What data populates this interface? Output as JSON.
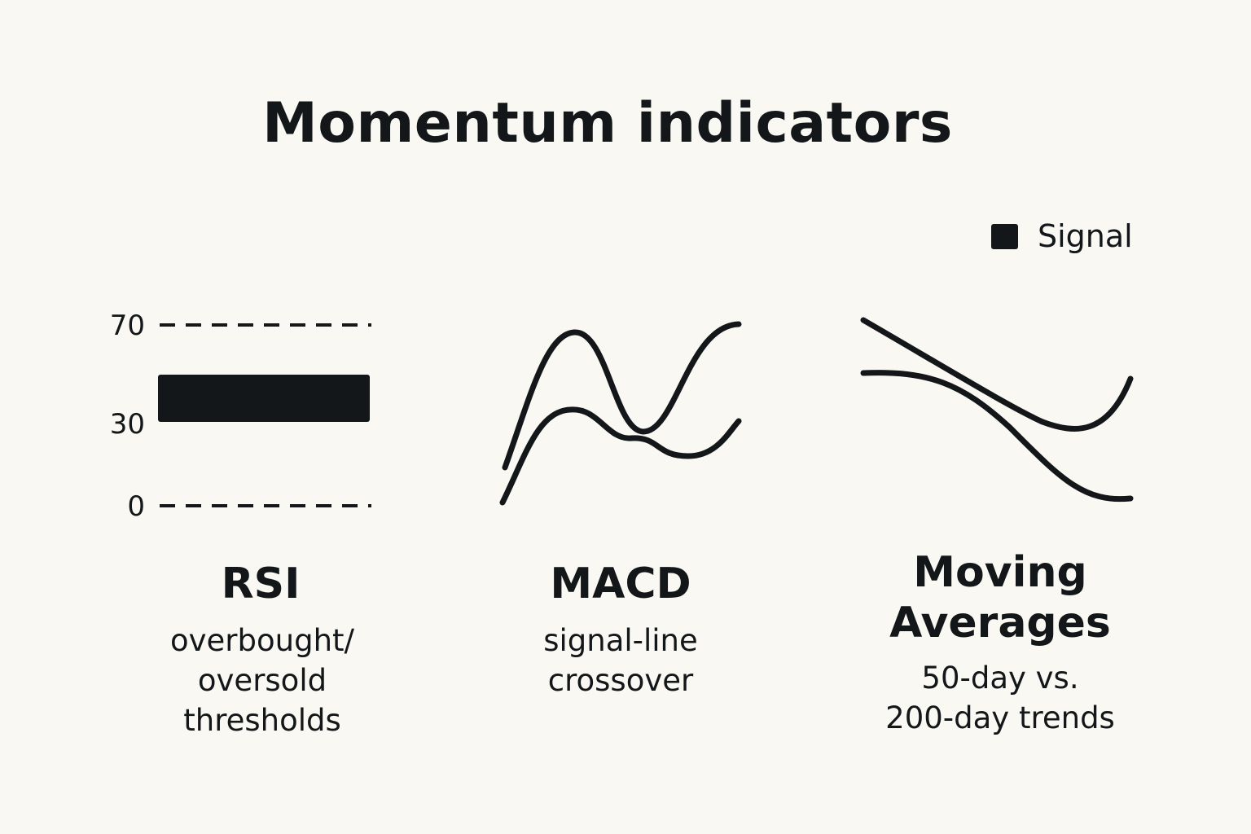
{
  "title": "Momentum indicators",
  "legend": {
    "label": "Signal",
    "color": "#141719"
  },
  "colors": {
    "ink": "#141719",
    "background": "#f9f8f3"
  },
  "rsi": {
    "heading": "RSI",
    "description": "overbought/\noversold\nthresholds",
    "ticks": [
      "70",
      "30",
      "0"
    ]
  },
  "macd": {
    "heading": "MACD",
    "description": "signal-line\ncrossover"
  },
  "moving_averages": {
    "heading": "Moving\nAverages",
    "description": "50-day vs.\n200-day trends"
  }
}
